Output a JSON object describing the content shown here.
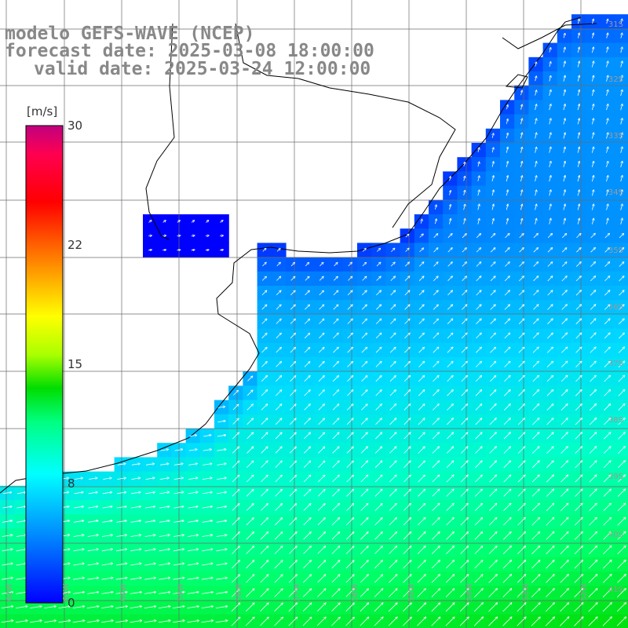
{
  "title": {
    "line1": "modelo GEFS-WAVE (NCEP)",
    "line2": "forecast date: 2025-03-08 18:00:00",
    "line3": "valid date: 2025-03-24 12:00:00"
  },
  "colorbar": {
    "unit": "[m/s]",
    "ticks": [
      {
        "label": "30",
        "value": 30
      },
      {
        "label": "22",
        "value": 22
      },
      {
        "label": "15",
        "value": 15
      },
      {
        "label": "8",
        "value": 8
      },
      {
        "label": "0",
        "value": 0
      }
    ],
    "min": 0,
    "max": 30,
    "gradient_stops": [
      "#0000ff",
      "#00aaff",
      "#00ffff",
      "#00dd00",
      "#7fff00",
      "#ffff00",
      "#ff8000",
      "#ff0000",
      "#ff0060",
      "#c0007f"
    ]
  },
  "grid_labels": {
    "latitudes": [
      "31S",
      "32S",
      "33S",
      "34S",
      "35S",
      "36S",
      "37S",
      "38S",
      "39S",
      "40S",
      "41S"
    ],
    "longitudes": [
      "62W",
      "61W",
      "60W",
      "59W",
      "58W",
      "57W",
      "56W",
      "55W",
      "54W",
      "53W",
      "52W"
    ]
  },
  "wind_field": {
    "description_units": "m/s",
    "calm_nearshore_speed": 3,
    "offshore_south_speed": 12,
    "dominant_direction": "northeastward"
  }
}
